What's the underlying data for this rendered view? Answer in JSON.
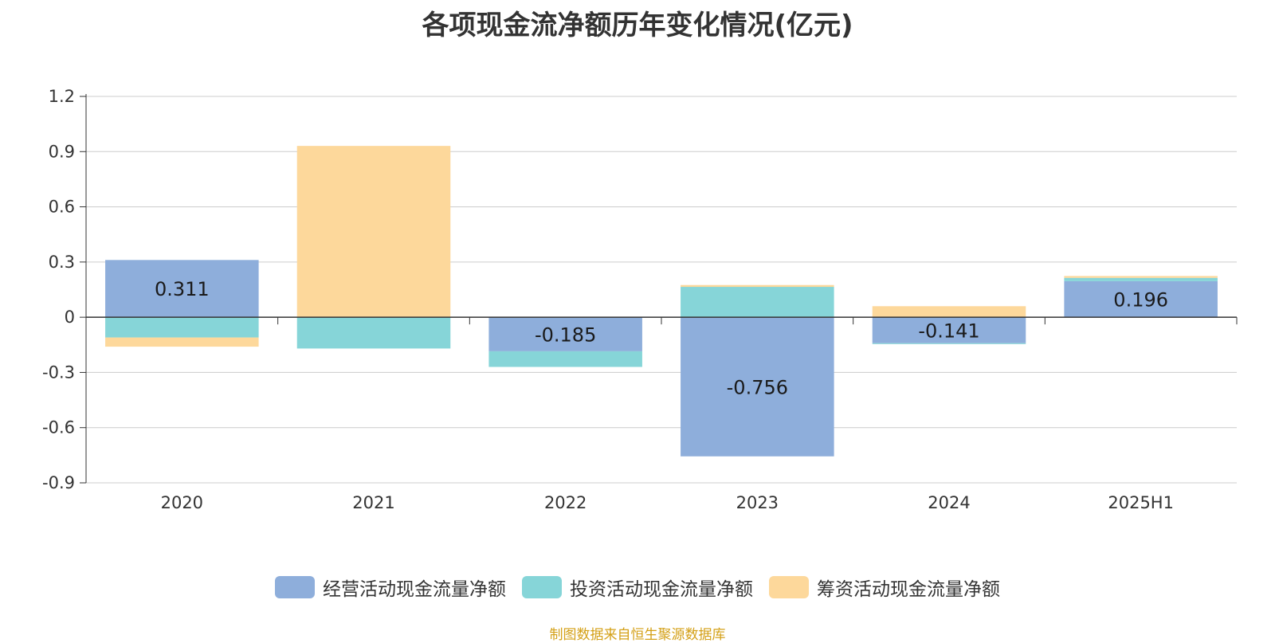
{
  "chart_data": {
    "type": "bar",
    "stacked": true,
    "title": "各项现金流净额历年变化情况(亿元)",
    "categories": [
      "2020",
      "2021",
      "2022",
      "2023",
      "2024",
      "2025H1"
    ],
    "ylim": [
      -0.9,
      1.2
    ],
    "yticks": [
      "1.2",
      "0.9",
      "0.6",
      "0.3",
      "0",
      "-0.3",
      "-0.6",
      "-0.9"
    ],
    "grid": true,
    "legend_position": "bottom",
    "series": [
      {
        "name": "经营活动现金流量净额",
        "color": "#8eaedb",
        "values": [
          0.311,
          0.001,
          -0.185,
          -0.756,
          -0.141,
          0.196
        ],
        "labels": [
          "0.311",
          "",
          "-0.185",
          "-0.756",
          "-0.141",
          "0.196"
        ]
      },
      {
        "name": "投资活动现金流量净额",
        "color": "#86d5d8",
        "values": [
          -0.11,
          -0.17,
          -0.085,
          0.165,
          -0.005,
          0.018
        ]
      },
      {
        "name": "筹资活动现金流量净额",
        "color": "#fdd89b",
        "values": [
          -0.05,
          0.93,
          0,
          0.01,
          0.06,
          0.01
        ]
      }
    ]
  },
  "source_note": "制图数据来自恒生聚源数据库"
}
